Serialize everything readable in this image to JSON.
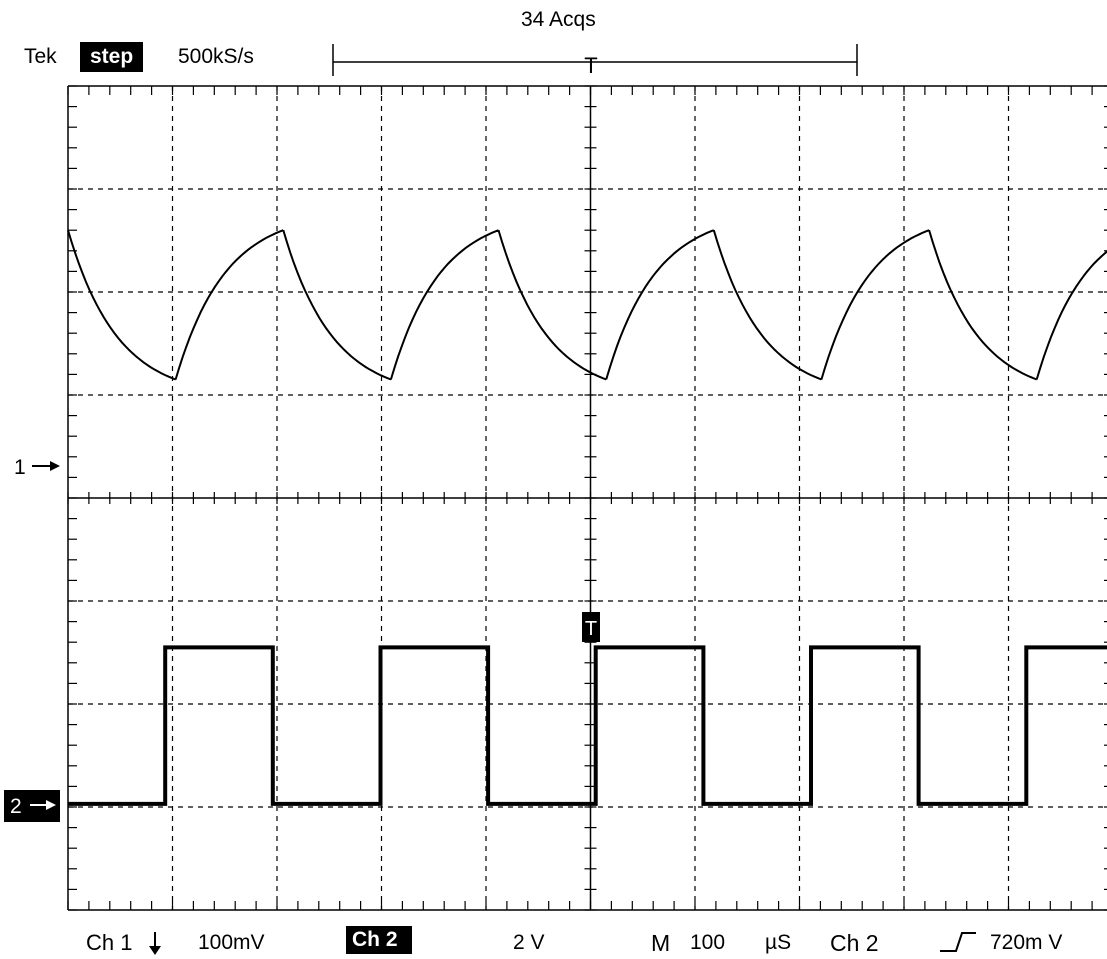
{
  "header": {
    "brand": "Tek",
    "mode_badge": "step",
    "sample_rate": "500kS/s",
    "acquisitions": "34 Acqs",
    "trigger_bracket_marker": "T"
  },
  "screen": {
    "trigger_marker": "T",
    "channel1_marker": "1",
    "channel2_marker": "2",
    "trace_color": "#000000",
    "graticule_color": "#000000",
    "background_color": "#ffffff"
  },
  "footer": {
    "ch1_label": "Ch 1",
    "ch1_coupling_icon": "down-arrow-icon",
    "ch1_scale": "100mV",
    "ch2_label": "Ch 2",
    "ch2_scale": "2 V",
    "timebase_prefix": "M",
    "timebase_value": "100",
    "timebase_unit": "µS",
    "trigger_source": "Ch 2",
    "trigger_slope_icon": "rising-edge-icon",
    "trigger_level": "720m V"
  },
  "chart_data": {
    "type": "line",
    "series": [
      {
        "kind": "exponential-triangle",
        "period_divisions": 2.06,
        "high_divisions": 6.6,
        "low_divisions": 5.15
      },
      {
        "kind": "square",
        "period_divisions": 2.06,
        "high_divisions": 2.55,
        "low_divisions": 1.03
      }
    ],
    "divisions": {
      "x": 10,
      "y": 8
    },
    "grid": true
  }
}
